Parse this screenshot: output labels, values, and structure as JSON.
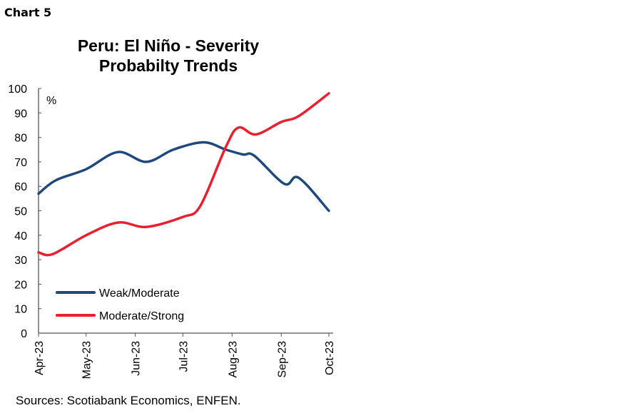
{
  "chart_label": "Chart 5",
  "source": "Sources: Scotiabank Economics, ENFEN.",
  "chart_data": {
    "type": "line",
    "title": "Peru: El Niño - Severity Probabilty Trends",
    "title_lines": [
      "Peru: El Niño - Severity",
      "Probabilty Trends"
    ],
    "ylabel": "%",
    "ylim": [
      0,
      100
    ],
    "yticks": [
      0,
      10,
      20,
      30,
      40,
      50,
      60,
      70,
      80,
      90,
      100
    ],
    "xlim": [
      "2023-04-01",
      "2023-10-01"
    ],
    "xticks": [
      {
        "date": "2023-04-01",
        "label": "Apr-23"
      },
      {
        "date": "2023-05-01",
        "label": "May-23"
      },
      {
        "date": "2023-06-01",
        "label": "Jun-23"
      },
      {
        "date": "2023-07-01",
        "label": "Jul-23"
      },
      {
        "date": "2023-08-01",
        "label": "Aug-23"
      },
      {
        "date": "2023-09-01",
        "label": "Sep-23"
      },
      {
        "date": "2023-10-01",
        "label": "Oct-23"
      }
    ],
    "grid": false,
    "legend_position": "bottom-left",
    "series": [
      {
        "name": "Weak/Moderate",
        "color": "#1f497d",
        "points": [
          [
            "2023-04-01",
            57
          ],
          [
            "2023-04-12",
            62.5
          ],
          [
            "2023-05-01",
            67
          ],
          [
            "2023-05-21",
            74
          ],
          [
            "2023-06-08",
            70
          ],
          [
            "2023-06-25",
            75
          ],
          [
            "2023-07-14",
            78
          ],
          [
            "2023-07-28",
            75
          ],
          [
            "2023-08-08",
            73
          ],
          [
            "2023-08-15",
            72.5
          ],
          [
            "2023-09-03",
            61
          ],
          [
            "2023-09-12",
            63.5
          ],
          [
            "2023-10-01",
            50
          ]
        ]
      },
      {
        "name": "Moderate/Strong",
        "color": "#e8202f",
        "points": [
          [
            "2023-04-01",
            33
          ],
          [
            "2023-04-10",
            32.3
          ],
          [
            "2023-05-01",
            40
          ],
          [
            "2023-05-21",
            45.2
          ],
          [
            "2023-06-08",
            43.4
          ],
          [
            "2023-07-01",
            47.5
          ],
          [
            "2023-07-12",
            52
          ],
          [
            "2023-07-28",
            76
          ],
          [
            "2023-08-05",
            84
          ],
          [
            "2023-08-16",
            81.2
          ],
          [
            "2023-09-01",
            86.3
          ],
          [
            "2023-09-12",
            88.7
          ],
          [
            "2023-10-01",
            98
          ]
        ]
      }
    ]
  }
}
